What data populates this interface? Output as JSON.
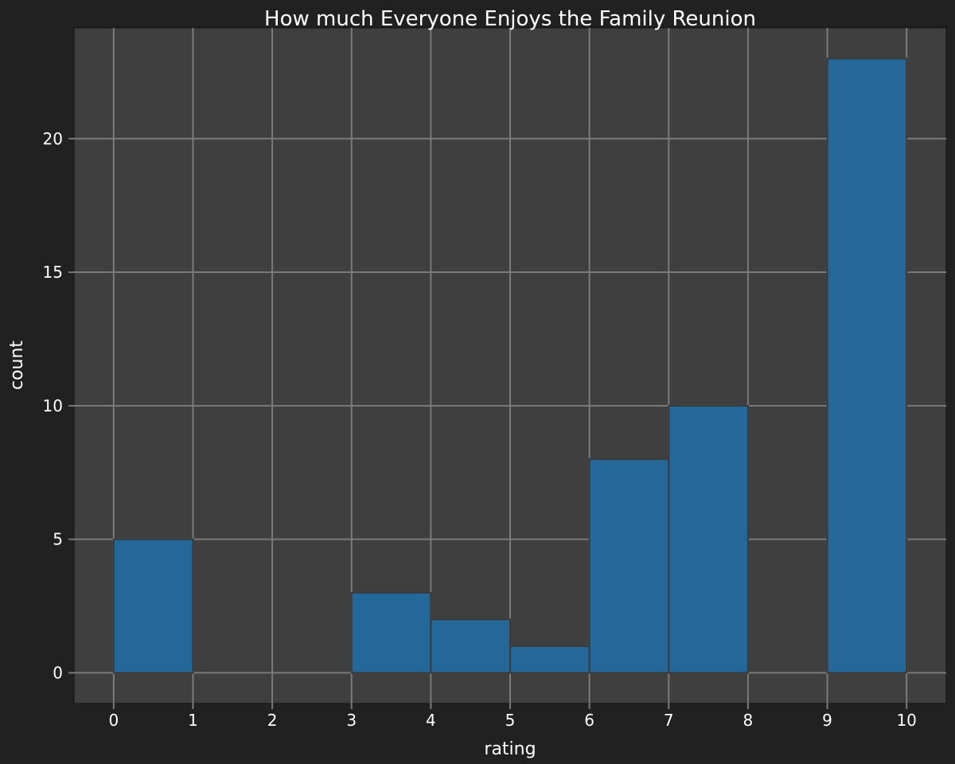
{
  "chart_data": {
    "type": "bar",
    "title": "How much Everyone Enjoys the Family Reunion",
    "xlabel": "rating",
    "ylabel": "count",
    "bins": [
      {
        "start": 0,
        "end": 1,
        "count": 5
      },
      {
        "start": 1,
        "end": 2,
        "count": 0
      },
      {
        "start": 2,
        "end": 3,
        "count": 0
      },
      {
        "start": 3,
        "end": 4,
        "count": 3
      },
      {
        "start": 4,
        "end": 5,
        "count": 2
      },
      {
        "start": 5,
        "end": 6,
        "count": 1
      },
      {
        "start": 6,
        "end": 7,
        "count": 8
      },
      {
        "start": 7,
        "end": 8,
        "count": 10
      },
      {
        "start": 8,
        "end": 9,
        "count": 0
      },
      {
        "start": 9,
        "end": 10,
        "count": 23
      }
    ],
    "xlim": [
      -0.5,
      10.5
    ],
    "ylim": [
      -1.15,
      24.15
    ],
    "xticks": [
      0,
      1,
      2,
      3,
      4,
      5,
      6,
      7,
      8,
      9,
      10
    ],
    "xtick_labels": [
      "0",
      "1",
      "2",
      "3",
      "4",
      "5",
      "6",
      "7",
      "8",
      "9",
      "10"
    ],
    "yticks": [
      0,
      5,
      10,
      15,
      20
    ],
    "ytick_labels": [
      "0",
      "5",
      "10",
      "15",
      "20"
    ],
    "grid": true,
    "colors": {
      "figure_bg": "#212121",
      "plot_bg": "#3f3f3f",
      "grid": "#7a7a7a",
      "bar": "#236898",
      "bar_edge": "#3a3a3a",
      "text": "#ffffff"
    }
  }
}
